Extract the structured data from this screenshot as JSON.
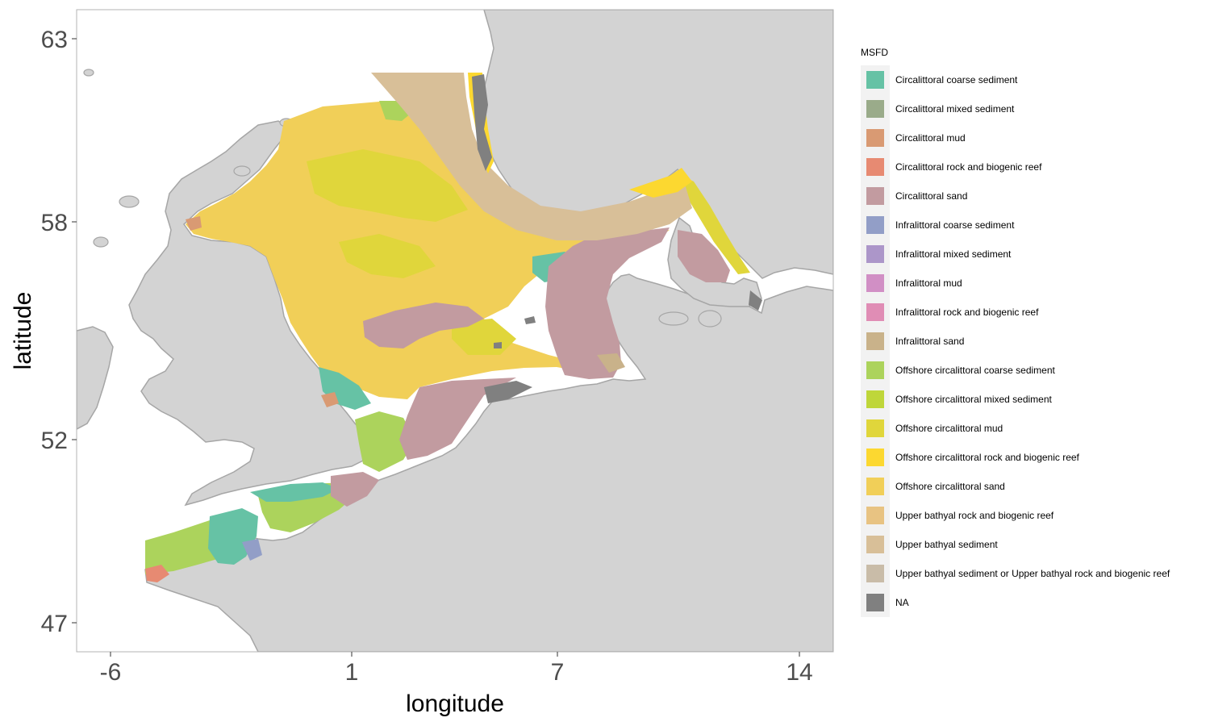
{
  "chart_data": {
    "type": "heatmap",
    "title": "",
    "xlabel": "longitude",
    "ylabel": "latitude",
    "x_ticks": [
      "-6",
      "1",
      "7",
      "14"
    ],
    "y_ticks": [
      "63",
      "58",
      "52",
      "47"
    ],
    "x_tick_values": [
      -6,
      1,
      7,
      14
    ],
    "y_tick_values": [
      63,
      58,
      52,
      47
    ],
    "xlim": [
      -7,
      15
    ],
    "ylim": [
      46.2,
      63.8
    ],
    "grid": false,
    "legend_position": "right",
    "legend_title": "MSFD",
    "legend": [
      {
        "label": "Circalittoral coarse sediment",
        "color": "#66c2a5"
      },
      {
        "label": "Circalittoral mixed sediment",
        "color": "#9aab8a"
      },
      {
        "label": "Circalittoral mud",
        "color": "#d99a73"
      },
      {
        "label": "Circalittoral rock and biogenic reef",
        "color": "#e78a72"
      },
      {
        "label": "Circalittoral sand",
        "color": "#c29ba0"
      },
      {
        "label": "Infralittoral coarse sediment",
        "color": "#929ec7"
      },
      {
        "label": "Infralittoral mixed sediment",
        "color": "#ac96c9"
      },
      {
        "label": "Infralittoral mud",
        "color": "#d18fc5"
      },
      {
        "label": "Infralittoral rock and biogenic reef",
        "color": "#e08db5"
      },
      {
        "label": "Infralittoral sand",
        "color": "#c9b28a"
      },
      {
        "label": "Offshore circalittoral coarse sediment",
        "color": "#acd35c"
      },
      {
        "label": "Offshore circalittoral mixed sediment",
        "color": "#bfd63a"
      },
      {
        "label": "Offshore circalittoral mud",
        "color": "#e0d63b"
      },
      {
        "label": "Offshore circalittoral rock and biogenic reef",
        "color": "#fcd830"
      },
      {
        "label": "Offshore circalittoral sand",
        "color": "#f1cf58"
      },
      {
        "label": "Upper bathyal rock and biogenic reef",
        "color": "#e8c382"
      },
      {
        "label": "Upper bathyal sediment",
        "color": "#d8bf98"
      },
      {
        "label": "Upper bathyal sediment or Upper bathyal rock and biogenic reef",
        "color": "#c9bca8"
      },
      {
        "label": "NA",
        "color": "#808080"
      }
    ]
  },
  "colors": {
    "land": "#d3d3d3",
    "land_border": "#a6a6a6",
    "sea": "#ffffff",
    "panel_border": "#b3b3b3"
  }
}
